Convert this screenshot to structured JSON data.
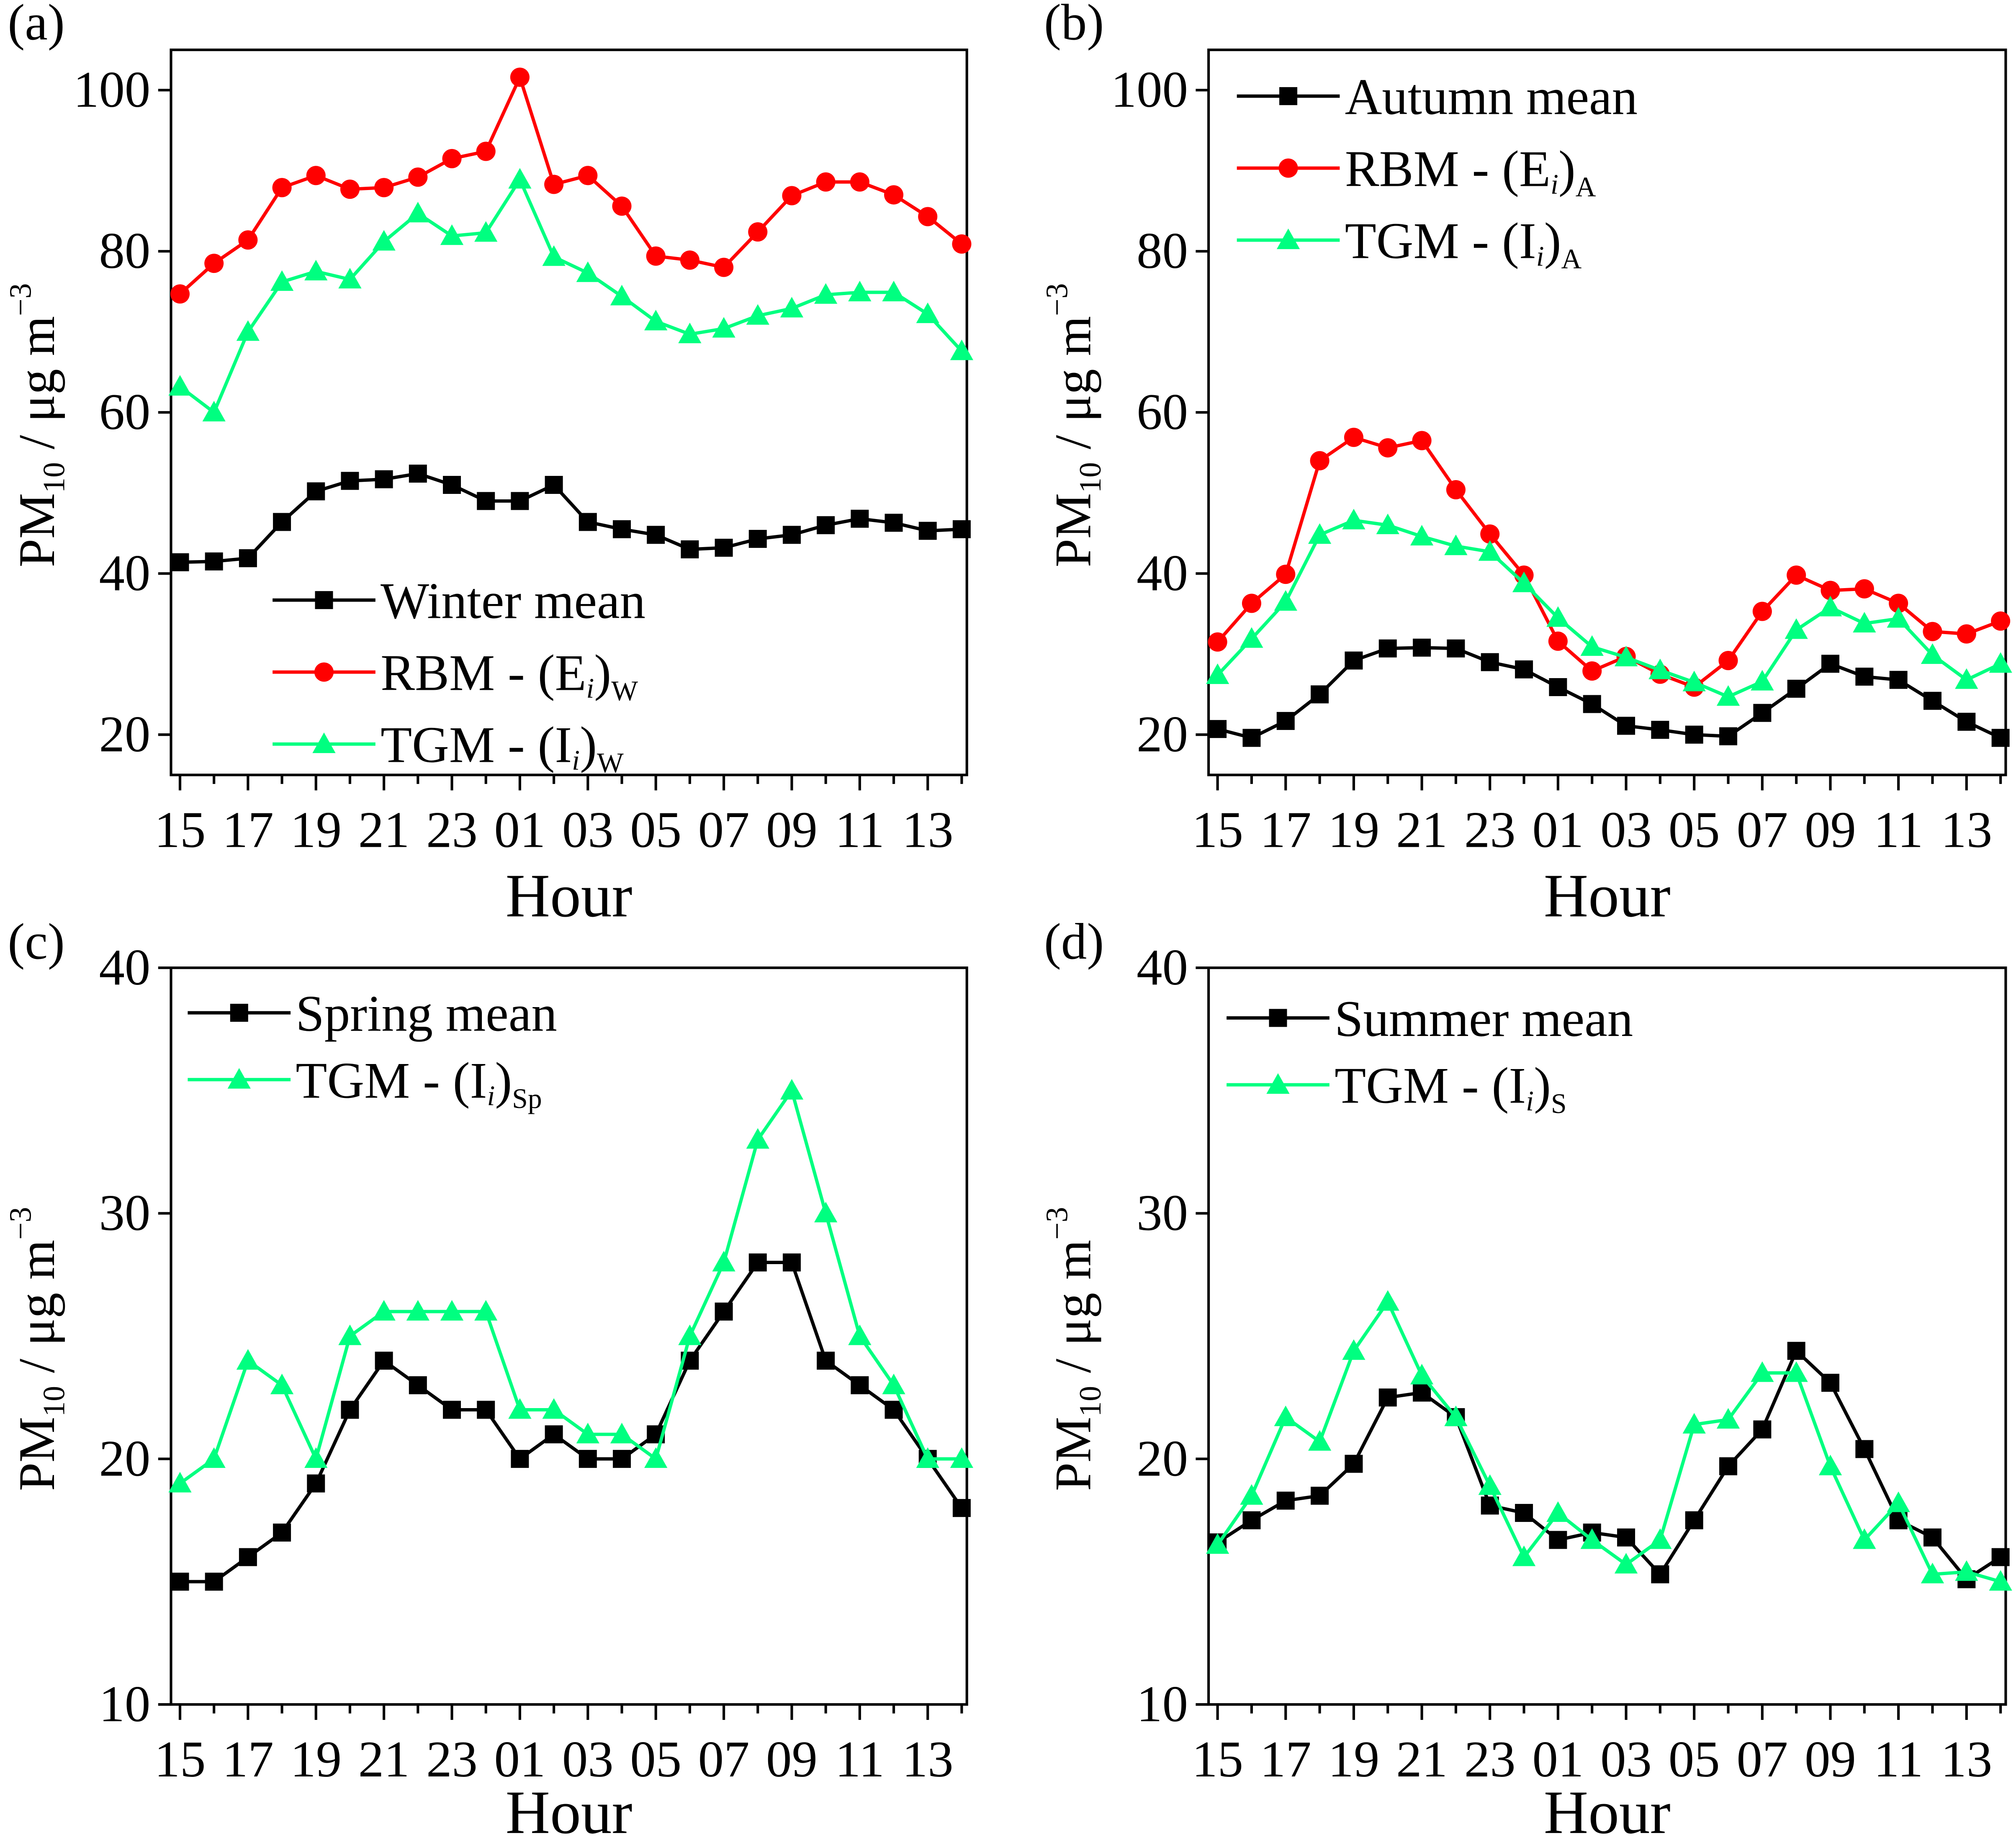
{
  "chart_data": [
    {
      "panel": "(a)",
      "type": "line",
      "xlabel": "Hour",
      "ylabel": "PM10 / μg m−3",
      "ylim": [
        15,
        105
      ],
      "yticks": [
        20,
        40,
        60,
        80,
        100
      ],
      "x": [
        "15",
        "16",
        "17",
        "18",
        "19",
        "20",
        "21",
        "22",
        "23",
        "00",
        "01",
        "02",
        "03",
        "04",
        "05",
        "06",
        "07",
        "08",
        "09",
        "10",
        "11",
        "12",
        "13",
        "14"
      ],
      "xtick_labels": [
        "15",
        "17",
        "19",
        "21",
        "23",
        "01",
        "03",
        "05",
        "07",
        "09",
        "11",
        "13"
      ],
      "legend_position": "bottom-center",
      "series": [
        {
          "name": "Winter mean",
          "label_main": "Winter mean",
          "label_sub": "",
          "color": "#000000",
          "marker": "square",
          "values": [
            41.4,
            41.5,
            41.9,
            46.4,
            50.2,
            51.5,
            51.7,
            52.4,
            51.0,
            49.0,
            49.0,
            51.0,
            46.4,
            45.5,
            44.8,
            43.0,
            43.2,
            44.3,
            44.8,
            46.0,
            46.8,
            46.3,
            45.3,
            45.5
          ]
        },
        {
          "name": "RBM - (Ei)W",
          "label_main": "RBM - (E",
          "label_italic": "i",
          "label_close": ")",
          "label_sub": "W",
          "color": "#ff0000",
          "marker": "circle",
          "values": [
            74.7,
            78.5,
            81.4,
            87.9,
            89.4,
            87.7,
            87.9,
            89.2,
            91.5,
            92.4,
            101.6,
            88.3,
            89.4,
            85.6,
            79.4,
            78.9,
            78.0,
            82.4,
            86.9,
            88.6,
            88.6,
            87.0,
            84.3,
            80.9
          ]
        },
        {
          "name": "TGM - (Ii)W",
          "label_main": "TGM - (I",
          "label_italic": "i",
          "label_close": ")",
          "label_sub": "W",
          "color": "#00ff80",
          "marker": "triangle",
          "values": [
            63.2,
            60.0,
            70.0,
            76.2,
            77.5,
            76.5,
            81.2,
            84.7,
            81.9,
            82.3,
            88.9,
            79.3,
            77.3,
            74.4,
            71.3,
            69.7,
            70.4,
            72.0,
            72.9,
            74.6,
            74.9,
            74.9,
            72.2,
            67.6
          ]
        }
      ]
    },
    {
      "panel": "(b)",
      "type": "line",
      "xlabel": "Hour",
      "ylabel": "PM10 / μg m−3",
      "ylim": [
        15,
        105
      ],
      "yticks": [
        20,
        40,
        60,
        80,
        100
      ],
      "x": [
        "15",
        "16",
        "17",
        "18",
        "19",
        "20",
        "21",
        "22",
        "23",
        "00",
        "01",
        "02",
        "03",
        "04",
        "05",
        "06",
        "07",
        "08",
        "09",
        "10",
        "11",
        "12",
        "13",
        "14"
      ],
      "xtick_labels": [
        "15",
        "17",
        "19",
        "21",
        "23",
        "01",
        "03",
        "05",
        "07",
        "09",
        "11",
        "13"
      ],
      "legend_position": "top-left",
      "series": [
        {
          "name": "Autumn mean",
          "label_main": "Autumn mean",
          "label_sub": "",
          "color": "#000000",
          "marker": "square",
          "values": [
            20.7,
            19.6,
            21.7,
            25.0,
            29.2,
            30.7,
            30.8,
            30.7,
            29.0,
            28.1,
            25.9,
            23.8,
            21.1,
            20.6,
            20.0,
            19.8,
            22.7,
            25.7,
            28.8,
            27.2,
            26.8,
            24.2,
            21.6,
            19.6
          ]
        },
        {
          "name": "RBM - (Ei)A",
          "label_main": "RBM - (E",
          "label_italic": "i",
          "label_close": ")",
          "label_sub": "A",
          "color": "#ff0000",
          "marker": "circle",
          "values": [
            31.5,
            36.3,
            39.9,
            54.0,
            56.9,
            55.6,
            56.5,
            50.4,
            44.9,
            39.8,
            31.6,
            27.9,
            29.7,
            27.5,
            25.9,
            29.2,
            35.3,
            39.8,
            37.9,
            38.1,
            36.3,
            32.8,
            32.5,
            34.1
          ]
        },
        {
          "name": "TGM - (Ii)A",
          "label_main": "TGM - (I",
          "label_italic": "i",
          "label_close": ")",
          "label_sub": "A",
          "color": "#00ff80",
          "marker": "triangle",
          "values": [
            27.4,
            31.9,
            36.5,
            44.8,
            46.6,
            46.0,
            44.6,
            43.4,
            42.7,
            38.8,
            34.5,
            30.9,
            29.6,
            28.0,
            26.5,
            24.7,
            26.6,
            33.0,
            35.8,
            33.8,
            34.4,
            29.9,
            26.8,
            28.8
          ]
        }
      ]
    },
    {
      "panel": "(c)",
      "type": "line",
      "xlabel": "Hour",
      "ylabel": "PM10 / μg m−3",
      "ylim": [
        10,
        40
      ],
      "yticks": [
        10,
        20,
        30,
        40
      ],
      "x": [
        "15",
        "16",
        "17",
        "18",
        "19",
        "20",
        "21",
        "22",
        "23",
        "00",
        "01",
        "02",
        "03",
        "04",
        "05",
        "06",
        "07",
        "08",
        "09",
        "10",
        "11",
        "12",
        "13",
        "14"
      ],
      "xtick_labels": [
        "15",
        "17",
        "19",
        "21",
        "23",
        "01",
        "03",
        "05",
        "07",
        "09",
        "11",
        "13"
      ],
      "legend_position": "top-left",
      "series": [
        {
          "name": "Spring mean",
          "label_main": "Spring mean",
          "label_sub": "",
          "color": "#000000",
          "marker": "square",
          "values": [
            15,
            15,
            16,
            17,
            19,
            22,
            24,
            23,
            22,
            22,
            20,
            21,
            20,
            20,
            21,
            24,
            26,
            28,
            28,
            24,
            23,
            22,
            20,
            18
          ]
        },
        {
          "name": "TGM - (Ii)Sp",
          "label_main": "TGM - (I",
          "label_italic": "i",
          "label_close": ")",
          "label_sub": "Sp",
          "color": "#00ff80",
          "marker": "triangle",
          "values": [
            19,
            20,
            24,
            23,
            20,
            25,
            26,
            26,
            26,
            26,
            22,
            22,
            21,
            21,
            20,
            25,
            28,
            33,
            35,
            30,
            25,
            23,
            20,
            20
          ]
        }
      ]
    },
    {
      "panel": "(d)",
      "type": "line",
      "xlabel": "Hour",
      "ylabel": "PM10 / μg m−3",
      "ylim": [
        10,
        40
      ],
      "yticks": [
        10,
        20,
        30,
        40
      ],
      "x": [
        "15",
        "16",
        "17",
        "18",
        "19",
        "20",
        "21",
        "22",
        "23",
        "00",
        "01",
        "02",
        "03",
        "04",
        "05",
        "06",
        "07",
        "08",
        "09",
        "10",
        "11",
        "12",
        "13",
        "14"
      ],
      "xtick_labels": [
        "15",
        "17",
        "19",
        "21",
        "23",
        "01",
        "03",
        "05",
        "07",
        "09",
        "11",
        "13"
      ],
      "legend_position": "top-left",
      "series": [
        {
          "name": "Summer mean",
          "label_main": "Summer mean",
          "label_sub": "",
          "color": "#000000",
          "marker": "square",
          "values": [
            16.6,
            17.5,
            18.3,
            18.5,
            19.8,
            22.5,
            22.7,
            21.7,
            18.1,
            17.8,
            16.7,
            17.0,
            16.8,
            15.3,
            17.5,
            19.7,
            21.2,
            24.4,
            23.1,
            20.4,
            17.5,
            16.8,
            15.1,
            16.0
          ]
        },
        {
          "name": "TGM - (Ii)S",
          "label_main": "TGM - (I",
          "label_italic": "i",
          "label_close": ")",
          "label_sub": "S",
          "color": "#00ff80",
          "marker": "triangle",
          "values": [
            16.5,
            18.5,
            21.7,
            20.7,
            24.4,
            26.4,
            23.4,
            21.7,
            18.9,
            16.0,
            17.8,
            16.7,
            15.7,
            16.7,
            21.4,
            21.6,
            23.5,
            23.5,
            19.7,
            16.7,
            18.2,
            15.3,
            15.4,
            15.0
          ]
        }
      ]
    }
  ],
  "ylabel_parts": {
    "pm": "PM",
    "sub": "10",
    "rest": " / μg m",
    "sup": "−3"
  }
}
